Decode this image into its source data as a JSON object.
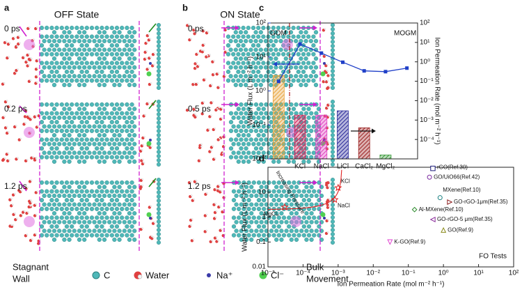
{
  "panels": [
    {
      "label": "a",
      "title": "OFF State",
      "times": [
        "0 ps",
        "0.2 ps",
        "1.2 ps"
      ]
    },
    {
      "label": "b",
      "title": "ON State",
      "times": [
        "0 ps",
        "0.5 ps",
        "1.2 ps"
      ]
    }
  ],
  "legend": {
    "left": [
      "Stagnant",
      "Wall"
    ],
    "items": [
      "C",
      "Water",
      "Na⁺",
      "Cl⁻"
    ],
    "right": [
      "Bulk",
      "Movement"
    ]
  },
  "chart_data": [
    {
      "type": "bar_line",
      "label": "c",
      "annotations": [
        "GOM",
        "MOGM"
      ],
      "categories": [
        null,
        "KCl",
        "NaCl",
        "LiCl",
        "CaCl₂",
        "MgCl₂",
        null
      ],
      "ylabel": "Water Flux (L m⁻² h⁻¹)",
      "y2label": "Ion Permeation Rate (mol m⁻² h⁻¹)",
      "log_y": true,
      "log_y2": true,
      "ylim": [
        0.01,
        100
      ],
      "yticks": [
        {
          "value": 0.01,
          "label": "10⁻²"
        },
        {
          "value": 0.1,
          "label": "10⁻¹"
        },
        {
          "value": 1,
          "label": "10⁰"
        },
        {
          "value": 10,
          "label": "10¹"
        },
        {
          "value": 100,
          "label": "10²"
        }
      ],
      "y2lim": [
        1e-05,
        100
      ],
      "y2ticks": [
        {
          "value": 0.0001,
          "label": "10⁻⁴"
        },
        {
          "value": 0.001,
          "label": "10⁻³"
        },
        {
          "value": 0.01,
          "label": "10⁻²"
        },
        {
          "value": 0.1,
          "label": "10⁻¹"
        },
        {
          "value": 1,
          "label": "10⁰"
        },
        {
          "value": 10,
          "label": "10¹"
        },
        {
          "value": 100,
          "label": "10²"
        }
      ],
      "series": [
        {
          "kind": "line",
          "color": "#1f3fc8",
          "values": [
            1.9,
            24,
            13,
            7,
            3.9,
            3.7,
            4.7
          ]
        },
        {
          "kind": "bar",
          "axis": "y2",
          "colors": [
            "#e8a33c",
            "#d0245a",
            "#e040c0",
            "#2a2a9a",
            "#9a2020",
            "#3a9a3a",
            null
          ],
          "values": [
            0.2,
            0.0018,
            0.0018,
            0.003,
            0.0004,
            1.6e-05,
            null
          ]
        }
      ]
    },
    {
      "type": "scatter",
      "label": "d",
      "xlabel": "Ion Permeation Rate (mol m⁻² h⁻¹)",
      "ylabel": "Water Flux (L m⁻² h⁻¹)",
      "log_x": true,
      "log_y": true,
      "xlim": [
        1e-05,
        100
      ],
      "xticks": [
        {
          "value": 1e-05,
          "label": "10⁻⁵"
        },
        {
          "value": 0.0001,
          "label": "10⁻⁴"
        },
        {
          "value": 0.001,
          "label": "10⁻³"
        },
        {
          "value": 0.01,
          "label": "10⁻²"
        },
        {
          "value": 0.1,
          "label": "10⁻¹"
        },
        {
          "value": 1,
          "label": "10⁰"
        },
        {
          "value": 10,
          "label": "10¹"
        },
        {
          "value": 100,
          "label": "10²"
        }
      ],
      "ylim": [
        0.01,
        100
      ],
      "yticks": [
        0.01,
        0.1,
        1,
        10
      ],
      "annotations": [
        "Increasing Pressure",
        "FO Tests"
      ],
      "series": [
        {
          "name": "KCl",
          "color": "#e02020",
          "marker": "star",
          "x": [
            0.001
          ],
          "y": [
            15
          ]
        },
        {
          "name": "NaCl",
          "color": "#e02020",
          "marker": "star",
          "x": [
            0.0008
          ],
          "y": [
            5
          ]
        },
        {
          "name": "MgCl₂",
          "color": "#e02020",
          "marker": "star",
          "x": [
            3e-05
          ],
          "y": [
            2.5
          ]
        },
        {
          "name": "rGO(Ref.30)",
          "color": "#1a1a7a",
          "marker": "square",
          "x": [
            0.5
          ],
          "y": [
            90
          ]
        },
        {
          "name": "GO/UiO66(Ref.42)",
          "color": "#7a2aa0",
          "marker": "circle",
          "x": [
            0.4
          ],
          "y": [
            40
          ]
        },
        {
          "name": "MXene(Ref.10)",
          "color": "#1a8080",
          "marker": "circle",
          "x": [
            0.8
          ],
          "y": [
            6
          ]
        },
        {
          "name": "GO-rGO-1μm(Ref.35)",
          "color": "#8a1a1a",
          "marker": "triangle-right",
          "x": [
            1.5
          ],
          "y": [
            4
          ]
        },
        {
          "name": "Al-MXene(Ref.10)",
          "color": "#2a8a2a",
          "marker": "diamond",
          "x": [
            0.15
          ],
          "y": [
            2
          ]
        },
        {
          "name": "GO-rGO-5 μm(Ref.35)",
          "color": "#8a2a9a",
          "marker": "triangle-left",
          "x": [
            0.5
          ],
          "y": [
            0.8
          ]
        },
        {
          "name": "GO(Ref.9)",
          "color": "#8a8a1a",
          "marker": "triangle-up",
          "x": [
            1
          ],
          "y": [
            0.3
          ]
        },
        {
          "name": "K-GO(Ref.9)",
          "color": "#e040d0",
          "marker": "triangle-down",
          "x": [
            0.03
          ],
          "y": [
            0.1
          ]
        }
      ]
    }
  ]
}
